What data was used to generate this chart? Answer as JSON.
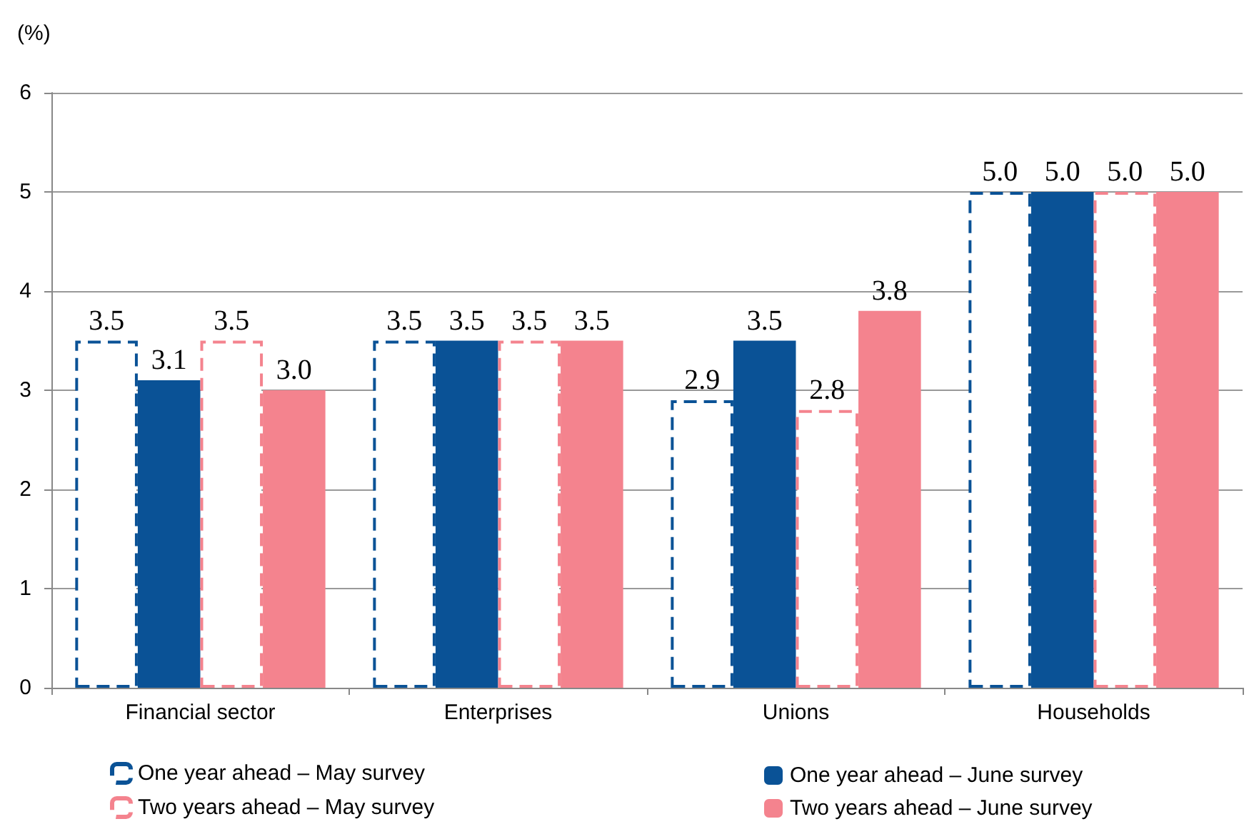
{
  "chart_data": {
    "type": "bar",
    "ylabel": "(%)",
    "categories": [
      "Financial sector",
      "Enterprises",
      "Unions",
      "Households"
    ],
    "series": [
      {
        "name": "One year ahead – May survey",
        "color": "#0a5296",
        "line_style": "dashed",
        "values": [
          3.5,
          3.5,
          2.9,
          5.0
        ],
        "value_labels": [
          "3.5",
          "3.5",
          "2.9",
          "5.0"
        ]
      },
      {
        "name": "One year ahead – June survey",
        "color": "#0a5296",
        "line_style": "solid",
        "values": [
          3.1,
          3.5,
          3.5,
          5.0
        ],
        "value_labels": [
          "3.1",
          "3.5",
          "3.5",
          "5.0"
        ]
      },
      {
        "name": "Two years ahead – May survey",
        "color": "#f4838e",
        "line_style": "dashed",
        "values": [
          3.5,
          3.5,
          2.8,
          5.0
        ],
        "value_labels": [
          "3.5",
          "3.5",
          "2.8",
          "5.0"
        ]
      },
      {
        "name": "Two years ahead – June survey",
        "color": "#f4838e",
        "line_style": "solid",
        "values": [
          3.0,
          3.5,
          3.8,
          5.0
        ],
        "value_labels": [
          "3.0",
          "3.5",
          "3.8",
          "5.0"
        ]
      }
    ],
    "ylim": [
      0,
      6
    ],
    "yticks": [
      0,
      1,
      2,
      3,
      4,
      5,
      6
    ],
    "grid": "y",
    "legend": "bottom"
  }
}
